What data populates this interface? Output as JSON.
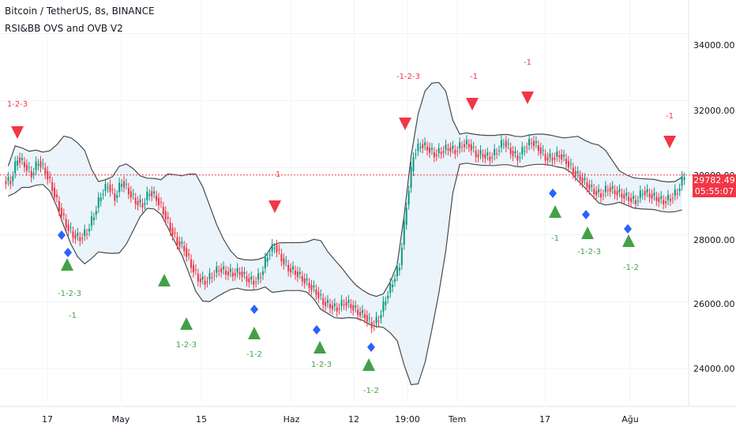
{
  "header": {
    "symbol_title": "Bitcoin / TetherUS, 8s, BINANCE",
    "indicator_name": "RSI&BB OVS and OVB V2"
  },
  "price_axis": {
    "ticks": [
      "34000.00",
      "32000.00",
      "30000.00",
      "28000.00",
      "26000.00",
      "24000.00"
    ],
    "last_price": "29782.49",
    "countdown": "05:55:07"
  },
  "time_axis": {
    "ticks": [
      "17",
      "May",
      "15",
      "Haz",
      "12",
      "19:00",
      "Tem",
      "17",
      "Ağu"
    ]
  },
  "colors": {
    "up_candle": "#089981",
    "down_candle": "#f23645",
    "band_fill": "#e3eef9",
    "band_line": "#4a4a4a",
    "buy_marker": "#43a047",
    "sell_marker": "#f23645",
    "diamond_marker": "#2962ff",
    "last_price_line": "#f23645"
  },
  "chart_data": {
    "type": "candlestick",
    "symbol": "Bitcoin / TetherUS",
    "timeframe": "8s",
    "exchange": "BINANCE",
    "y_range": [
      23000,
      35000
    ],
    "last_price": 29782.49,
    "close_series_approx": [
      29600,
      30300,
      30100,
      29800,
      30200,
      29900,
      29400,
      28800,
      28300,
      28000,
      27900,
      28100,
      28600,
      29200,
      29500,
      29100,
      29600,
      29300,
      29000,
      28900,
      29300,
      29100,
      28700,
      28200,
      27800,
      27600,
      27100,
      26700,
      26600,
      26800,
      27000,
      26900,
      26850,
      26900,
      26700,
      26600,
      26800,
      27400,
      27700,
      27300,
      27000,
      26900,
      26700,
      26500,
      26300,
      26000,
      25900,
      25800,
      26000,
      25900,
      25700,
      25600,
      25300,
      25500,
      26100,
      26600,
      27100,
      28900,
      30400,
      30700,
      30600,
      30400,
      30500,
      30600,
      30500,
      30700,
      30700,
      30400,
      30400,
      30300,
      30500,
      30800,
      30500,
      30300,
      30600,
      30800,
      30600,
      30300,
      30300,
      30400,
      30200,
      29900,
      29700,
      29500,
      29300,
      29200,
      29400,
      29300,
      29200,
      29100,
      29000,
      29300,
      29200,
      29100,
      29000,
      29100,
      29300,
      29800
    ],
    "markers_sell": [
      "1-2-3",
      "1",
      "-1-2-3",
      "-1",
      "-1",
      "-1"
    ],
    "markers_buy": [
      "-1-2-3",
      "-1",
      "1-2-3",
      "-1-2",
      "1-2-3",
      "-1-2",
      "-1",
      "-1-2-3",
      "-1-2"
    ]
  }
}
